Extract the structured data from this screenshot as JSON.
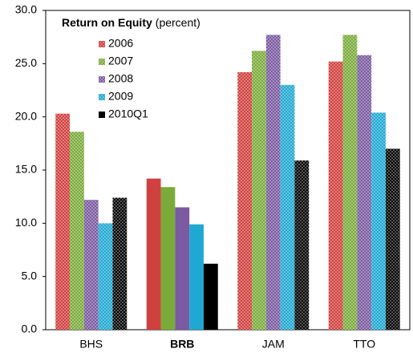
{
  "chart_data": {
    "type": "bar",
    "title": "Return on Equity",
    "subtitle": "(percent)",
    "categories": [
      "BHS",
      "BRB",
      "JAM",
      "TTO"
    ],
    "highlight_index": 1,
    "series": [
      {
        "name": "2006",
        "color": "#d0403e",
        "values": [
          20.3,
          14.2,
          24.2,
          25.2
        ]
      },
      {
        "name": "2007",
        "color": "#7aab3a",
        "values": [
          18.6,
          13.4,
          26.2,
          27.7
        ]
      },
      {
        "name": "2008",
        "color": "#7a5aa0",
        "values": [
          12.2,
          11.5,
          27.7,
          25.8
        ]
      },
      {
        "name": "2009",
        "color": "#1fa8d2",
        "values": [
          10.0,
          9.9,
          23.0,
          20.4
        ]
      },
      {
        "name": "2010Q1",
        "color": "#000000",
        "values": [
          12.4,
          6.2,
          15.9,
          17.0
        ]
      }
    ],
    "ylim": [
      0,
      30
    ],
    "yticks": [
      {
        "value": 0,
        "label": "0.0"
      },
      {
        "value": 5,
        "label": "5.0"
      },
      {
        "value": 10,
        "label": "10.0"
      },
      {
        "value": 15,
        "label": "15.0"
      },
      {
        "value": 20,
        "label": "20.0"
      },
      {
        "value": 25,
        "label": "25.0"
      },
      {
        "value": 30,
        "label": "30.0"
      }
    ],
    "grid": false
  }
}
